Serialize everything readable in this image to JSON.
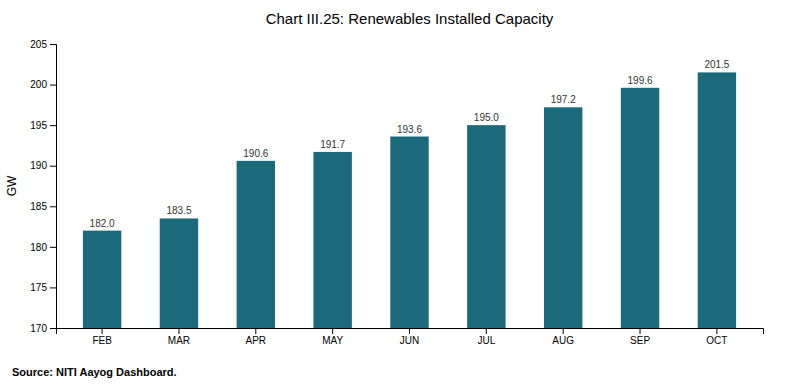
{
  "chart_data": {
    "type": "bar",
    "title": "Chart III.25: Renewables Installed Capacity",
    "categories": [
      "FEB",
      "MAR",
      "APR",
      "MAY",
      "JUN",
      "JUL",
      "AUG",
      "SEP",
      "OCT"
    ],
    "values": [
      182.0,
      183.5,
      190.6,
      191.7,
      193.6,
      195.0,
      197.2,
      199.6,
      201.5
    ],
    "value_labels": [
      "182.0",
      "183.5",
      "190.6",
      "191.7",
      "193.6",
      "195.0",
      "197.2",
      "199.6",
      "201.5"
    ],
    "data_labels": true,
    "color": "#1b6a7b",
    "ylabel": "GW",
    "ylim": [
      170,
      205
    ],
    "yticks": [
      170,
      175,
      180,
      185,
      190,
      195,
      200,
      205
    ],
    "grid": false,
    "annotations": [
      "Source: NITI Aayog Dashboard."
    ]
  }
}
